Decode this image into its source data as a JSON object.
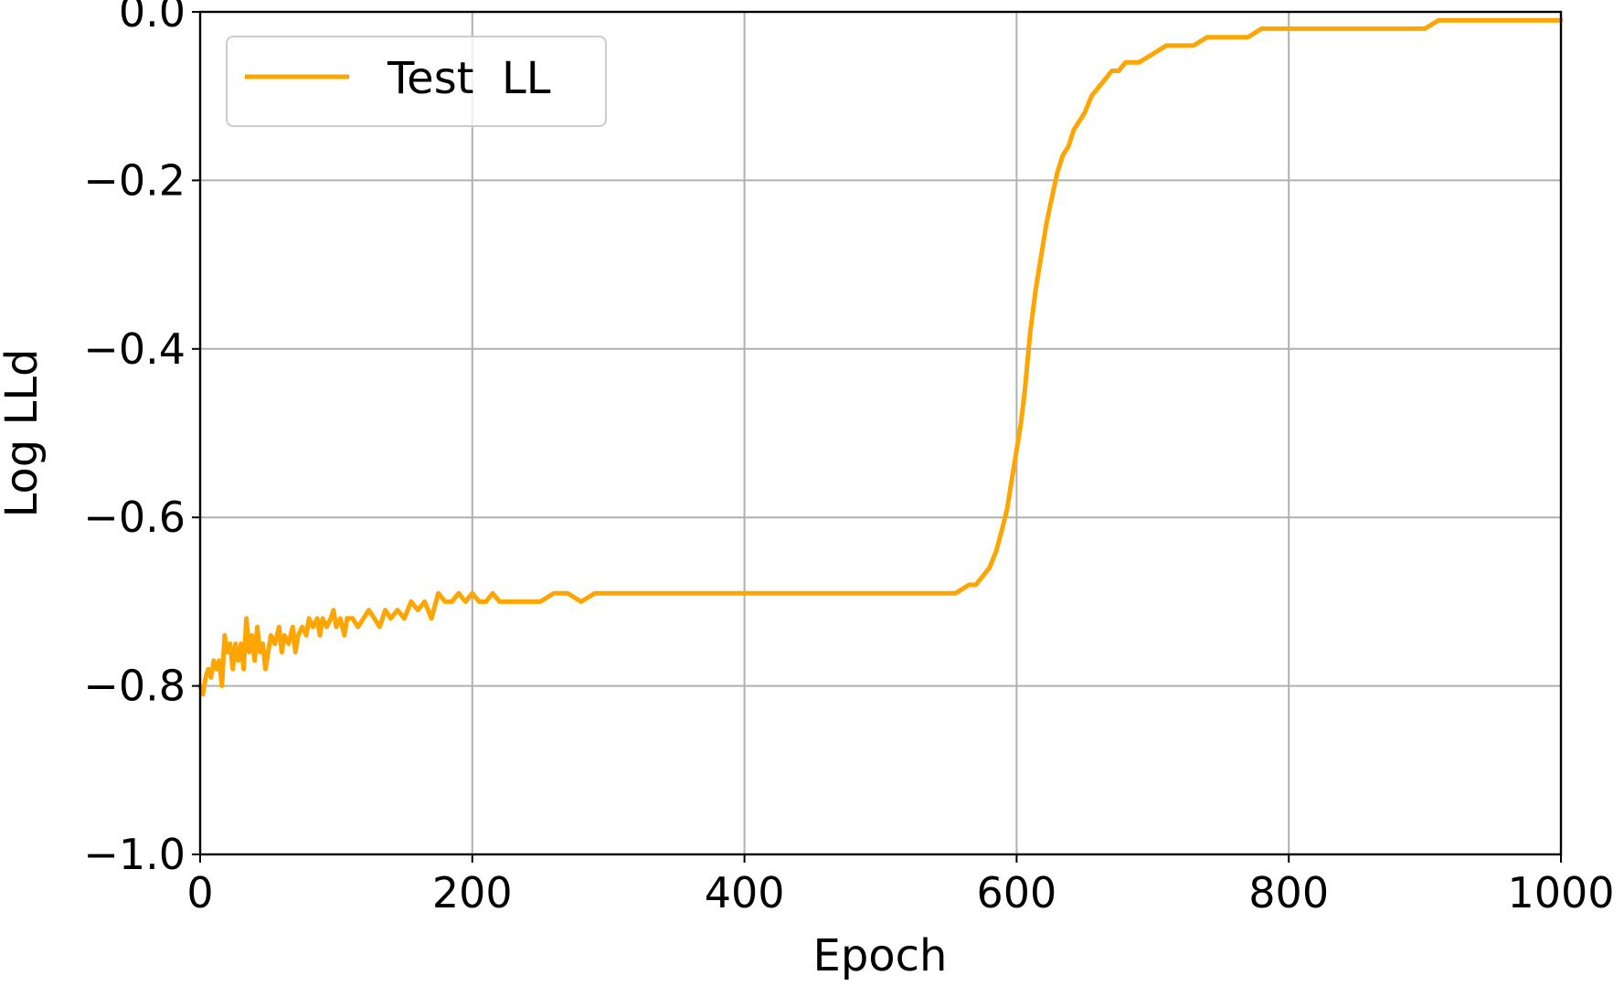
{
  "chart_data": {
    "type": "line",
    "title": "",
    "xlabel": "Epoch",
    "ylabel": "Log LLd",
    "xlim": [
      0,
      1000
    ],
    "ylim": [
      -1.0,
      0.0
    ],
    "x_ticks": [
      0,
      200,
      400,
      600,
      800,
      1000
    ],
    "y_ticks": [
      0.0,
      -0.2,
      -0.4,
      -0.6,
      -0.8,
      -1.0
    ],
    "x_tick_labels": [
      "0",
      "200",
      "400",
      "600",
      "800",
      "1000"
    ],
    "y_tick_labels": [
      "0.0",
      "−0.2",
      "−0.4",
      "−0.6",
      "−0.8",
      "−1.0"
    ],
    "grid": true,
    "legend_position": "top-left",
    "series": [
      {
        "name": "Test  LL",
        "color": "#FFA500",
        "points": [
          [
            0,
            -0.8
          ],
          [
            2,
            -0.81
          ],
          [
            4,
            -0.79
          ],
          [
            6,
            -0.78
          ],
          [
            8,
            -0.79
          ],
          [
            10,
            -0.77
          ],
          [
            12,
            -0.78
          ],
          [
            14,
            -0.77
          ],
          [
            16,
            -0.8
          ],
          [
            18,
            -0.74
          ],
          [
            20,
            -0.76
          ],
          [
            22,
            -0.75
          ],
          [
            24,
            -0.78
          ],
          [
            26,
            -0.75
          ],
          [
            28,
            -0.77
          ],
          [
            30,
            -0.75
          ],
          [
            32,
            -0.78
          ],
          [
            34,
            -0.72
          ],
          [
            36,
            -0.76
          ],
          [
            38,
            -0.74
          ],
          [
            40,
            -0.77
          ],
          [
            42,
            -0.73
          ],
          [
            44,
            -0.76
          ],
          [
            46,
            -0.75
          ],
          [
            48,
            -0.78
          ],
          [
            50,
            -0.76
          ],
          [
            52,
            -0.74
          ],
          [
            55,
            -0.75
          ],
          [
            58,
            -0.73
          ],
          [
            60,
            -0.76
          ],
          [
            62,
            -0.74
          ],
          [
            65,
            -0.75
          ],
          [
            68,
            -0.73
          ],
          [
            70,
            -0.76
          ],
          [
            72,
            -0.74
          ],
          [
            75,
            -0.73
          ],
          [
            78,
            -0.74
          ],
          [
            80,
            -0.72
          ],
          [
            83,
            -0.73
          ],
          [
            86,
            -0.72
          ],
          [
            88,
            -0.74
          ],
          [
            90,
            -0.72
          ],
          [
            93,
            -0.73
          ],
          [
            96,
            -0.72
          ],
          [
            98,
            -0.71
          ],
          [
            100,
            -0.73
          ],
          [
            103,
            -0.72
          ],
          [
            106,
            -0.74
          ],
          [
            108,
            -0.72
          ],
          [
            112,
            -0.72
          ],
          [
            116,
            -0.73
          ],
          [
            120,
            -0.72
          ],
          [
            124,
            -0.71
          ],
          [
            128,
            -0.72
          ],
          [
            132,
            -0.73
          ],
          [
            136,
            -0.71
          ],
          [
            140,
            -0.72
          ],
          [
            145,
            -0.71
          ],
          [
            150,
            -0.72
          ],
          [
            155,
            -0.7
          ],
          [
            160,
            -0.71
          ],
          [
            165,
            -0.7
          ],
          [
            170,
            -0.72
          ],
          [
            175,
            -0.69
          ],
          [
            180,
            -0.7
          ],
          [
            185,
            -0.7
          ],
          [
            190,
            -0.69
          ],
          [
            195,
            -0.7
          ],
          [
            200,
            -0.69
          ],
          [
            205,
            -0.7
          ],
          [
            210,
            -0.7
          ],
          [
            215,
            -0.69
          ],
          [
            220,
            -0.7
          ],
          [
            230,
            -0.7
          ],
          [
            240,
            -0.7
          ],
          [
            250,
            -0.7
          ],
          [
            260,
            -0.69
          ],
          [
            270,
            -0.69
          ],
          [
            280,
            -0.7
          ],
          [
            290,
            -0.69
          ],
          [
            300,
            -0.69
          ],
          [
            320,
            -0.69
          ],
          [
            340,
            -0.69
          ],
          [
            360,
            -0.69
          ],
          [
            380,
            -0.69
          ],
          [
            400,
            -0.69
          ],
          [
            420,
            -0.69
          ],
          [
            440,
            -0.69
          ],
          [
            460,
            -0.69
          ],
          [
            480,
            -0.69
          ],
          [
            500,
            -0.69
          ],
          [
            520,
            -0.69
          ],
          [
            540,
            -0.69
          ],
          [
            555,
            -0.69
          ],
          [
            565,
            -0.68
          ],
          [
            570,
            -0.68
          ],
          [
            575,
            -0.67
          ],
          [
            580,
            -0.66
          ],
          [
            585,
            -0.64
          ],
          [
            590,
            -0.61
          ],
          [
            593,
            -0.59
          ],
          [
            596,
            -0.56
          ],
          [
            600,
            -0.52
          ],
          [
            603,
            -0.49
          ],
          [
            606,
            -0.45
          ],
          [
            610,
            -0.38
          ],
          [
            614,
            -0.33
          ],
          [
            618,
            -0.29
          ],
          [
            622,
            -0.25
          ],
          [
            626,
            -0.22
          ],
          [
            630,
            -0.19
          ],
          [
            634,
            -0.17
          ],
          [
            638,
            -0.16
          ],
          [
            642,
            -0.14
          ],
          [
            646,
            -0.13
          ],
          [
            650,
            -0.12
          ],
          [
            655,
            -0.1
          ],
          [
            660,
            -0.09
          ],
          [
            665,
            -0.08
          ],
          [
            670,
            -0.07
          ],
          [
            675,
            -0.07
          ],
          [
            680,
            -0.06
          ],
          [
            690,
            -0.06
          ],
          [
            700,
            -0.05
          ],
          [
            710,
            -0.04
          ],
          [
            720,
            -0.04
          ],
          [
            730,
            -0.04
          ],
          [
            740,
            -0.03
          ],
          [
            750,
            -0.03
          ],
          [
            760,
            -0.03
          ],
          [
            770,
            -0.03
          ],
          [
            780,
            -0.02
          ],
          [
            790,
            -0.02
          ],
          [
            800,
            -0.02
          ],
          [
            820,
            -0.02
          ],
          [
            840,
            -0.02
          ],
          [
            860,
            -0.02
          ],
          [
            880,
            -0.02
          ],
          [
            900,
            -0.02
          ],
          [
            910,
            -0.01
          ],
          [
            920,
            -0.01
          ],
          [
            940,
            -0.01
          ],
          [
            960,
            -0.01
          ],
          [
            980,
            -0.01
          ],
          [
            1000,
            -0.01
          ]
        ]
      }
    ]
  }
}
